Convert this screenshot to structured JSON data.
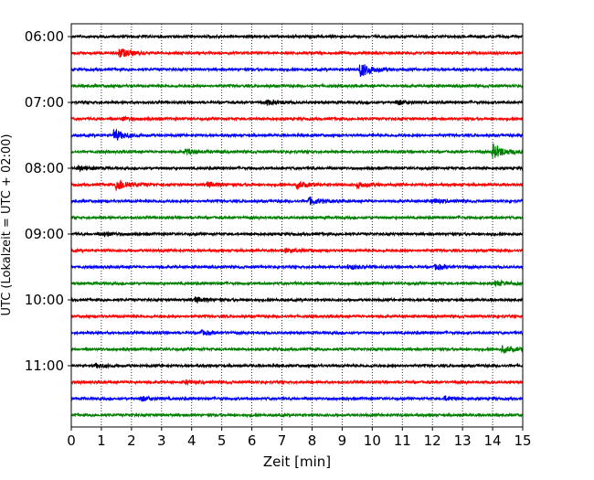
{
  "chart_data": {
    "type": "line",
    "title": "",
    "xlabel": "Zeit  [min]",
    "ylabel": "UTC (Lokalzeit = UTC + 02:00)",
    "xlim": [
      0,
      15
    ],
    "x_ticks": [
      "0",
      "1",
      "2",
      "3",
      "4",
      "5",
      "6",
      "7",
      "8",
      "9",
      "10",
      "11",
      "12",
      "13",
      "14",
      "15"
    ],
    "y_ticks": [
      {
        "label": "06:00",
        "trace": 0
      },
      {
        "label": "07:00",
        "trace": 4
      },
      {
        "label": "08:00",
        "trace": 8
      },
      {
        "label": "09:00",
        "trace": 12
      },
      {
        "label": "10:00",
        "trace": 16
      },
      {
        "label": "11:00",
        "trace": 20
      }
    ],
    "grid": "vertical dotted",
    "trace_colors": [
      "#000000",
      "#ff0000",
      "#0000ff",
      "#008000"
    ],
    "traces": [
      {
        "start": "06:00",
        "events": []
      },
      {
        "start": "06:15",
        "events": [
          [
            1.6,
            1.0
          ]
        ]
      },
      {
        "start": "06:30",
        "events": [
          [
            9.6,
            1.6
          ]
        ]
      },
      {
        "start": "06:45",
        "events": []
      },
      {
        "start": "07:00",
        "events": [
          [
            6.5,
            0.5
          ],
          [
            10.8,
            0.5
          ]
        ]
      },
      {
        "start": "07:15",
        "events": [
          [
            1.7,
            0.4
          ]
        ]
      },
      {
        "start": "07:30",
        "events": [
          [
            1.4,
            1.2
          ]
        ]
      },
      {
        "start": "07:45",
        "events": [
          [
            3.8,
            0.6
          ],
          [
            14.0,
            1.6
          ]
        ]
      },
      {
        "start": "08:00",
        "events": [
          [
            0.2,
            0.5
          ]
        ]
      },
      {
        "start": "08:15",
        "events": [
          [
            1.5,
            1.4
          ],
          [
            4.5,
            0.6
          ],
          [
            7.5,
            0.7
          ],
          [
            9.5,
            0.6
          ]
        ]
      },
      {
        "start": "08:30",
        "events": [
          [
            7.9,
            0.8
          ],
          [
            12.0,
            0.5
          ]
        ]
      },
      {
        "start": "08:45",
        "events": []
      },
      {
        "start": "09:00",
        "events": [
          [
            1.1,
            0.4
          ]
        ]
      },
      {
        "start": "09:15",
        "events": [
          [
            7.1,
            0.4
          ]
        ]
      },
      {
        "start": "09:30",
        "events": [
          [
            9.2,
            0.5
          ],
          [
            12.1,
            0.5
          ]
        ]
      },
      {
        "start": "09:45",
        "events": [
          [
            14.1,
            0.5
          ]
        ]
      },
      {
        "start": "10:00",
        "events": [
          [
            4.1,
            0.6
          ]
        ]
      },
      {
        "start": "10:15",
        "events": []
      },
      {
        "start": "10:30",
        "events": [
          [
            4.3,
            0.4
          ]
        ]
      },
      {
        "start": "10:45",
        "events": [
          [
            14.3,
            0.7
          ]
        ]
      },
      {
        "start": "11:00",
        "events": [
          [
            0.8,
            0.4
          ]
        ]
      },
      {
        "start": "11:15",
        "events": [
          [
            3.8,
            0.3
          ]
        ]
      },
      {
        "start": "11:30",
        "events": [
          [
            2.3,
            0.5
          ],
          [
            12.4,
            0.4
          ]
        ]
      },
      {
        "start": "11:45",
        "events": []
      }
    ]
  }
}
